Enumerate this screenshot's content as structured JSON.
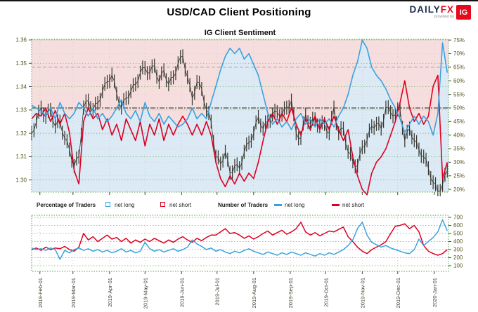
{
  "header": {
    "title": "USD/CAD Client Positioning",
    "logo": {
      "daily": "DAILY",
      "fx": "FX",
      "provided_by": "provided by",
      "ig": "IG"
    }
  },
  "legend": {
    "percentage_label": "Percentage of Traders",
    "number_label": "Number of Traders",
    "net_long": "net long",
    "net_short": "net short"
  },
  "colors": {
    "net_long_blue": "#3aa2e0",
    "net_short_red": "#dd0022",
    "price_dark": "#35352d",
    "bg_above_pink": "#f7dede",
    "bg_below_blue": "#dceaf6",
    "grid_green": "#8cc080",
    "grid_faint": "#dcc9c9",
    "frame_green": "#56a244",
    "axis_label": "#55551e",
    "date_label": "#3f3f33",
    "mid_line": "#4a4a42",
    "current_line": "#a5a5a5"
  },
  "chart_data": [
    {
      "type": "line",
      "title": "IG Client Sentiment",
      "x_total_days": 353,
      "x_step_days": 4,
      "x_tick_days": [
        7,
        35,
        66,
        96,
        127,
        157,
        188,
        219,
        249,
        280,
        310,
        341
      ],
      "x_tick_labels": [
        "2019-Feb-01",
        "2019-Mar-01",
        "2019-Apr-01",
        "2019-May-01",
        "2019-Jun-01",
        "2019-Jul-01",
        "2019-Aug-01",
        "2019-Sep-01",
        "2019-Oct-01",
        "2019-Nov-01",
        "2019-Dec-01",
        "2020-Jan-01"
      ],
      "left_axis": {
        "label_values": [
          1.36,
          1.35,
          1.34,
          1.33,
          1.32,
          1.31,
          1.3
        ],
        "range": [
          1.2948,
          1.3603
        ]
      },
      "right_axis": {
        "tick_values": [
          75,
          70,
          65,
          60,
          55,
          50,
          45,
          40,
          35,
          30,
          25,
          20
        ],
        "range": [
          19.0,
          75.3
        ],
        "unit": "%"
      },
      "reference_lines": {
        "fifty_pct": 50,
        "current_pct": 65
      },
      "series": [
        {
          "name": "price",
          "color": "#35352d",
          "bar_half_range": 0.003,
          "values": [
            1.32,
            1.325,
            1.331,
            1.327,
            1.33,
            1.323,
            1.325,
            1.318,
            1.313,
            1.306,
            1.31,
            1.331,
            1.334,
            1.33,
            1.333,
            1.338,
            1.342,
            1.345,
            1.337,
            1.331,
            1.335,
            1.338,
            1.341,
            1.346,
            1.348,
            1.346,
            1.349,
            1.342,
            1.347,
            1.341,
            1.344,
            1.35,
            1.353,
            1.344,
            1.335,
            1.342,
            1.339,
            1.33,
            1.325,
            1.31,
            1.307,
            1.312,
            1.303,
            1.306,
            1.305,
            1.312,
            1.316,
            1.32,
            1.327,
            1.322,
            1.325,
            1.328,
            1.329,
            1.328,
            1.331,
            1.334,
            1.32,
            1.318,
            1.328,
            1.324,
            1.326,
            1.323,
            1.324,
            1.32,
            1.331,
            1.32,
            1.322,
            1.312,
            1.308,
            1.306,
            1.314,
            1.317,
            1.323,
            1.324,
            1.322,
            1.331,
            1.329,
            1.328,
            1.33,
            1.317,
            1.322,
            1.317,
            1.313,
            1.31,
            1.305,
            1.299,
            1.295,
            1.298,
            1.304
          ]
        },
        {
          "name": "pct net long",
          "color": "#3aa2e0",
          "values": [
            51,
            50,
            49,
            47,
            50,
            46,
            52,
            48,
            46,
            48,
            52,
            50,
            47,
            50,
            46,
            48,
            45,
            47,
            50,
            53,
            48,
            46,
            49,
            45,
            52,
            47,
            45,
            48,
            44,
            47,
            45,
            43,
            44,
            46,
            50,
            46,
            48,
            46,
            52,
            58,
            64,
            69,
            72,
            70,
            72,
            68,
            70,
            66,
            62,
            55,
            48,
            44,
            46,
            43,
            45,
            42,
            46,
            48,
            44,
            46,
            43,
            46,
            44,
            46,
            43,
            47,
            50,
            55,
            62,
            67,
            75,
            72,
            65,
            62,
            60,
            57,
            53,
            50,
            46,
            41,
            44,
            47,
            44,
            47,
            45,
            40,
            48,
            74,
            63
          ]
        },
        {
          "name": "pct net short",
          "color": "#dd0022",
          "values": [
            46,
            48,
            47,
            50,
            45,
            49,
            44,
            48,
            41,
            27,
            22,
            45,
            50,
            46,
            48,
            42,
            46,
            40,
            44,
            38,
            46,
            42,
            38,
            45,
            36,
            44,
            40,
            46,
            38,
            44,
            40,
            44,
            47,
            44,
            40,
            44,
            40,
            45,
            40,
            30,
            24,
            21,
            25,
            22,
            26,
            23,
            26,
            24,
            30,
            38,
            45,
            48,
            44,
            48,
            45,
            50,
            44,
            40,
            46,
            42,
            47,
            42,
            46,
            42,
            47,
            42,
            38,
            42,
            32,
            25,
            20,
            18,
            26,
            30,
            32,
            35,
            40,
            45,
            52,
            60,
            50,
            45,
            48,
            44,
            47,
            58,
            62,
            24,
            30
          ]
        }
      ],
      "background": {
        "above": "#f7dede",
        "below": "#dceaf6"
      }
    },
    {
      "type": "line",
      "title": "Number of Traders",
      "x_total_days": 353,
      "x_step_days": 4,
      "right_axis": {
        "tick_values": [
          700,
          600,
          500,
          400,
          300,
          200,
          100
        ],
        "range": [
          30,
          726
        ]
      },
      "series": [
        {
          "name": "num net long",
          "color": "#3aa2e0",
          "values": [
            320,
            300,
            310,
            290,
            320,
            300,
            180,
            290,
            260,
            300,
            320,
            290,
            310,
            280,
            300,
            270,
            290,
            260,
            280,
            310,
            270,
            290,
            260,
            280,
            390,
            310,
            280,
            300,
            270,
            290,
            310,
            280,
            300,
            330,
            420,
            370,
            340,
            300,
            320,
            280,
            300,
            270,
            250,
            280,
            260,
            290,
            310,
            280,
            260,
            240,
            270,
            250,
            230,
            260,
            240,
            270,
            250,
            230,
            260,
            240,
            220,
            250,
            230,
            260,
            240,
            270,
            300,
            350,
            420,
            560,
            640,
            480,
            390,
            360,
            330,
            350,
            320,
            300,
            280,
            260,
            250,
            300,
            430,
            350,
            400,
            450,
            520,
            670,
            530
          ]
        },
        {
          "name": "num net short",
          "color": "#dd0022",
          "values": [
            300,
            320,
            290,
            330,
            300,
            320,
            310,
            340,
            300,
            280,
            330,
            500,
            420,
            460,
            400,
            440,
            480,
            430,
            450,
            400,
            440,
            380,
            420,
            390,
            430,
            400,
            440,
            410,
            380,
            420,
            390,
            430,
            460,
            420,
            390,
            440,
            410,
            450,
            480,
            480,
            520,
            560,
            500,
            510,
            480,
            440,
            470,
            430,
            460,
            500,
            530,
            480,
            510,
            540,
            490,
            520,
            560,
            640,
            520,
            480,
            510,
            470,
            500,
            530,
            520,
            550,
            580,
            460,
            400,
            330,
            280,
            250,
            300,
            330,
            360,
            400,
            500,
            590,
            600,
            620,
            560,
            600,
            520,
            350,
            280,
            250,
            230,
            250,
            300
          ]
        }
      ]
    }
  ]
}
